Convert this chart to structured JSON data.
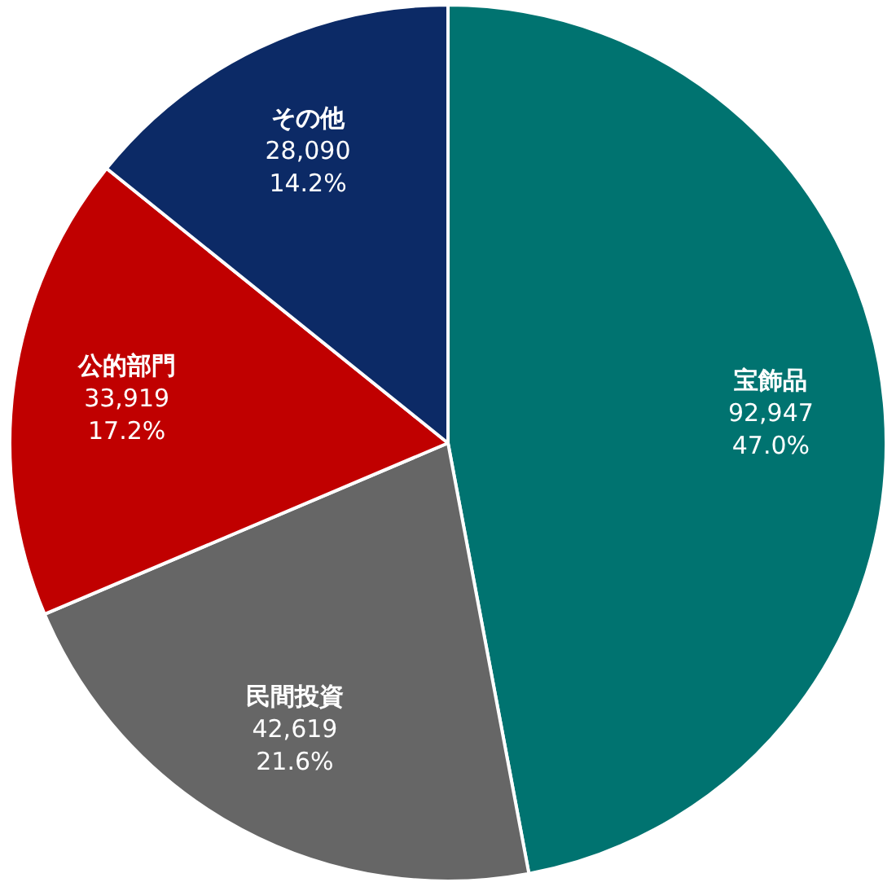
{
  "chart_data": {
    "type": "pie",
    "categories": [
      "宝飾品",
      "民間投資",
      "公的部門",
      "その他"
    ],
    "values": [
      92947,
      42619,
      33919,
      28090
    ],
    "value_labels": [
      "92,947 47.0%",
      "42,619 21.6%",
      "33,919 17.2%",
      "28,090 14.2%"
    ],
    "colors": [
      "#007370",
      "#666666",
      "#c00000",
      "#0c2a66"
    ],
    "legend": false
  }
}
